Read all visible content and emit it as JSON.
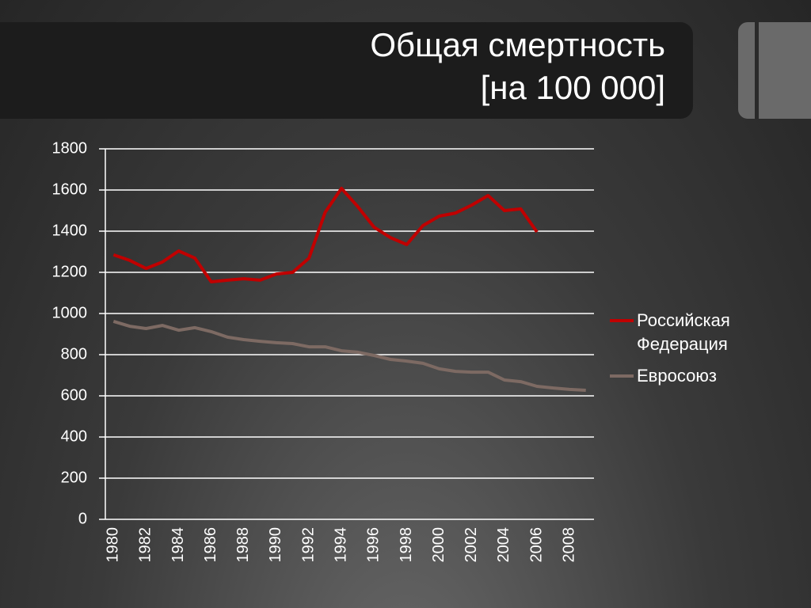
{
  "chart_data": {
    "type": "line",
    "title": "Общая смертность",
    "subtitle": "[на 100 000]",
    "categories": [
      "1980",
      null,
      "1982",
      null,
      "1984",
      null,
      "1986",
      null,
      "1988",
      null,
      "1990",
      null,
      "1992",
      null,
      "1994",
      null,
      "1996",
      null,
      "1998",
      null,
      "2000",
      null,
      "2002",
      null,
      "2004",
      null,
      "2006",
      null,
      "2008",
      null
    ],
    "series": [
      {
        "name": "Российская Федерация",
        "color": "#c00000",
        "values": [
          1285,
          1258,
          1219,
          1250,
          1304,
          1269,
          1154,
          1162,
          1169,
          1162,
          1192,
          1200,
          1269,
          1492,
          1608,
          1519,
          1419,
          1369,
          1335,
          1427,
          1473,
          1488,
          1527,
          1573,
          1500,
          1508,
          1396,
          null,
          null,
          null
        ]
      },
      {
        "name": "Евросоюз",
        "color": "#7d6a63",
        "values": [
          962,
          938,
          927,
          942,
          919,
          931,
          912,
          885,
          873,
          865,
          858,
          854,
          838,
          838,
          819,
          812,
          796,
          777,
          769,
          758,
          731,
          719,
          715,
          715,
          677,
          669,
          646,
          638,
          631,
          627
        ]
      }
    ],
    "ylim": [
      0,
      1800
    ],
    "yticks": [
      0,
      200,
      400,
      600,
      800,
      1000,
      1200,
      1400,
      1600,
      1800
    ],
    "grid": true,
    "legend": "right"
  }
}
